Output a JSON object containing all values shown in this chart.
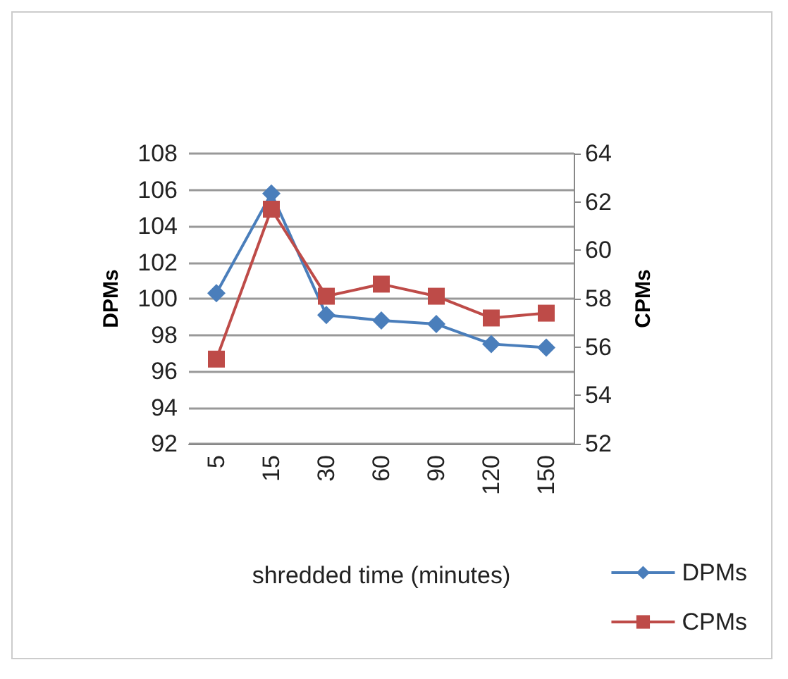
{
  "chart_data": {
    "type": "line",
    "categories": [
      "5",
      "15",
      "30",
      "60",
      "90",
      "120",
      "150"
    ],
    "xlabel": "shredded time (minutes)",
    "ylabel": "DPMs",
    "y2label": "CPMs",
    "ylim": [
      92,
      108
    ],
    "yticks": [
      92,
      94,
      96,
      98,
      100,
      102,
      104,
      106,
      108
    ],
    "y2lim": [
      52,
      64
    ],
    "y2ticks": [
      52,
      54,
      56,
      58,
      60,
      62,
      64
    ],
    "series": [
      {
        "name": "DPMs",
        "color": "#4a7ebb",
        "marker": "diamond",
        "values": [
          100.3,
          105.8,
          99.1,
          98.8,
          98.6,
          97.5,
          97.3
        ]
      },
      {
        "name": "CPMs",
        "color": "#be4b48",
        "marker": "square",
        "axis": "y2",
        "values": [
          55.5,
          61.7,
          58.1,
          58.6,
          58.1,
          57.2,
          57.4
        ]
      }
    ],
    "grid": "y",
    "legend": "bottom right"
  }
}
